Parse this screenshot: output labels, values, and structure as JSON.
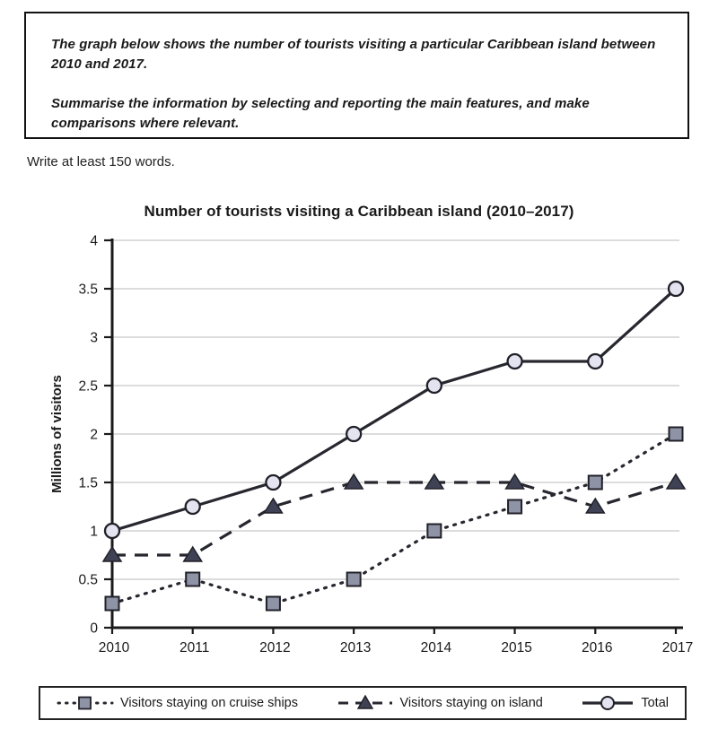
{
  "task": {
    "prompt_line1": "The graph below shows the number of tourists visiting a particular Caribbean island between 2010 and 2017.",
    "prompt_line2": "Summarise the information by selecting and reporting the main features, and make comparisons where relevant.",
    "write_instruction": "Write at least 150 words."
  },
  "chart_data": {
    "type": "line",
    "title": "Number of tourists visiting a Caribbean island (2010–2017)",
    "xlabel": "",
    "ylabel": "Millions of visitors",
    "x": [
      "2010",
      "2011",
      "2012",
      "2013",
      "2014",
      "2015",
      "2016",
      "2017"
    ],
    "ylim": [
      0,
      4
    ],
    "ytick_step": 0.5,
    "grid": true,
    "legend_position": "bottom",
    "series": [
      {
        "name": "Visitors staying on cruise ships",
        "marker": "square",
        "line_style": "dotted",
        "values": [
          0.25,
          0.5,
          0.25,
          0.5,
          1.0,
          1.25,
          1.5,
          2.0
        ]
      },
      {
        "name": "Visitors staying on island",
        "marker": "triangle",
        "line_style": "dashed",
        "values": [
          0.75,
          0.75,
          1.25,
          1.5,
          1.5,
          1.5,
          1.25,
          1.5
        ]
      },
      {
        "name": "Total",
        "marker": "circle",
        "line_style": "solid",
        "values": [
          1.0,
          1.25,
          1.5,
          2.0,
          2.5,
          2.75,
          2.75,
          3.5
        ]
      }
    ],
    "colors": {
      "line": "#27272f",
      "axis": "#1a1a1a",
      "grid": "#c6c6c6",
      "circle_fill": "#e3e4ef",
      "square_fill": "#8f93a6",
      "triangle_fill": "#3f4254",
      "marker_stroke": "#202028"
    }
  }
}
